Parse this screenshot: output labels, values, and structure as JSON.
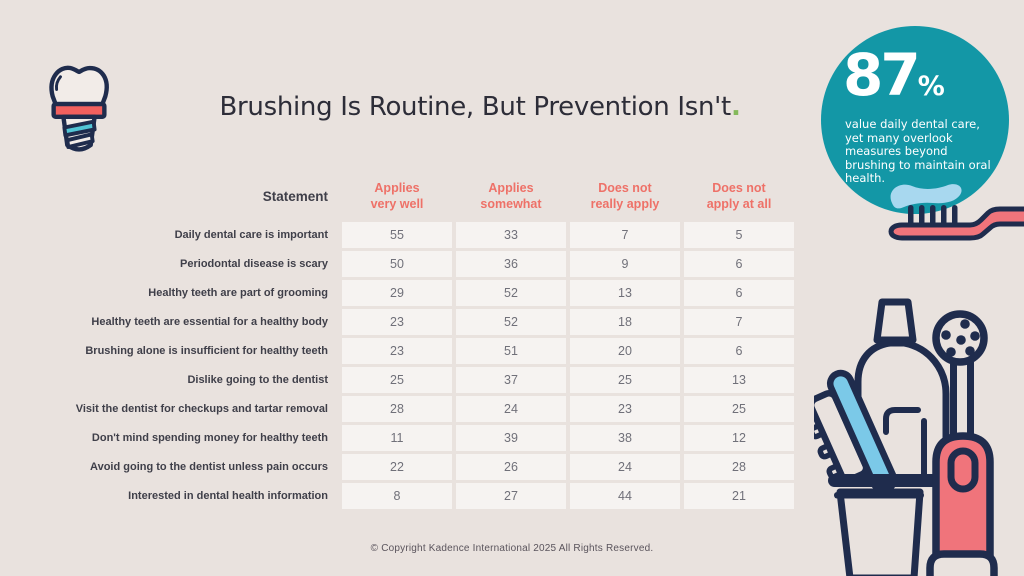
{
  "page": {
    "title": "Brushing Is Routine, But Prevention Isn't",
    "title_period": ".",
    "footer": "© Copyright Kadence International 2025 All Rights Reserved."
  },
  "highlight": {
    "stat_value": "87",
    "stat_unit": "%",
    "stat_text": "value daily dental care, yet many overlook measures beyond brushing to maintain oral health."
  },
  "chart_data": {
    "type": "table",
    "title": "Brushing Is Routine, But Prevention Isn't.",
    "statement_header": "Statement",
    "columns": [
      "Applies very well",
      "Applies somewhat",
      "Does not really apply",
      "Does not apply at all"
    ],
    "columns_display": [
      "Applies\nvery well",
      "Applies\nsomewhat",
      "Does not\nreally apply",
      "Does not\napply at all"
    ],
    "rows": [
      {
        "label": "Daily dental care is important",
        "values": [
          55,
          33,
          7,
          5
        ]
      },
      {
        "label": "Periodontal disease is scary",
        "values": [
          50,
          36,
          9,
          6
        ]
      },
      {
        "label": "Healthy teeth are part of grooming",
        "values": [
          29,
          52,
          13,
          6
        ]
      },
      {
        "label": "Healthy teeth are essential for a healthy body",
        "values": [
          23,
          52,
          18,
          7
        ]
      },
      {
        "label": "Brushing alone is insufficient for healthy teeth",
        "values": [
          23,
          51,
          20,
          6
        ]
      },
      {
        "label": "Dislike going to the dentist",
        "values": [
          25,
          37,
          25,
          13
        ]
      },
      {
        "label": "Visit the dentist for checkups and tartar removal",
        "values": [
          28,
          24,
          23,
          25
        ]
      },
      {
        "label": "Don't mind spending money for healthy teeth",
        "values": [
          11,
          39,
          38,
          12
        ]
      },
      {
        "label": "Avoid going to the dentist unless pain occurs",
        "values": [
          22,
          26,
          24,
          28
        ]
      },
      {
        "label": "Interested in dental health information",
        "values": [
          8,
          27,
          44,
          21
        ]
      }
    ],
    "highlight_stat": {
      "value": 87,
      "unit": "%",
      "caption": "value daily dental care, yet many overlook measures beyond brushing to maintain oral health."
    }
  },
  "icons": {
    "dental-implant-icon": "tooth implant line drawing (top left)",
    "toothbrush-icon": "toothbrush with toothpaste under stat circle",
    "hygiene-set-icon": "cup with toothbrush, mouthwash bottle and electric toothbrush (bottom right)"
  },
  "colors": {
    "background": "#e9e2de",
    "accent_salmon": "#ee7168",
    "salmon_fill": "#f0747b",
    "teal": "#1397a6",
    "navy": "#1f2c4d",
    "light_blue": "#a8d8ef",
    "brush_blue": "#7bc9e8",
    "green_accent": "#85b95b",
    "cell_background": "#f6f3f1"
  }
}
